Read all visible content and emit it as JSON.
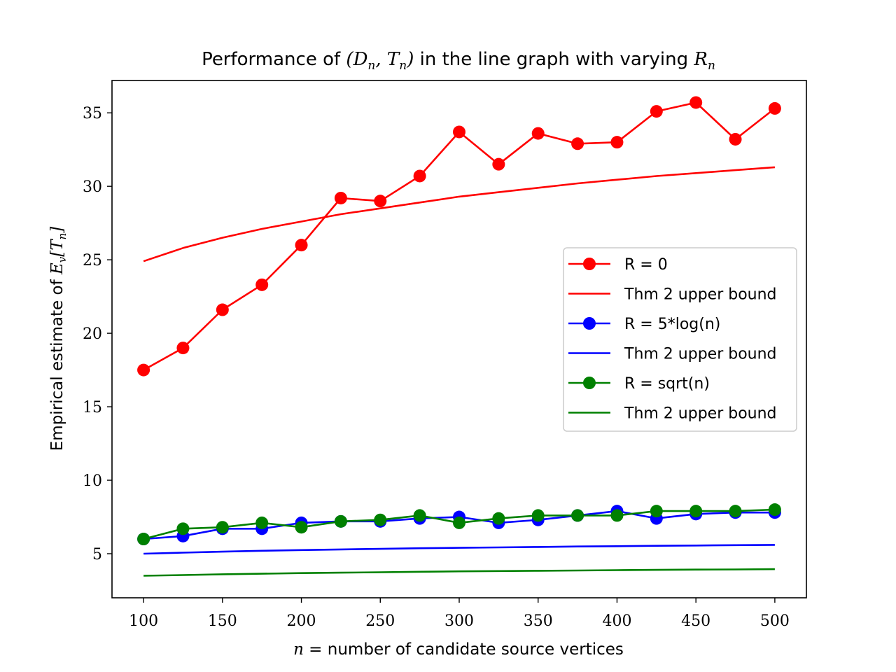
{
  "chart_data": {
    "type": "line",
    "title_prefix": "Performance of ",
    "title_math1": "(D",
    "title_math1_sub": "n",
    "title_math1_mid": ", T",
    "title_math1_sub2": "n",
    "title_math1_end": ")",
    "title_mid": " in the line graph with varying ",
    "title_math2": "R",
    "title_math2_sub": "n",
    "xlabel_math": "n =",
    "xlabel_text": " number of candidate source vertices",
    "ylabel_text": "Empirical estimate of ",
    "ylabel_math": "E",
    "ylabel_math_sub": "v",
    "ylabel_math_bracket": "[T",
    "ylabel_math_sub2": "n",
    "ylabel_math_end": "]",
    "x": [
      100,
      125,
      150,
      175,
      200,
      225,
      250,
      275,
      300,
      325,
      350,
      375,
      400,
      425,
      450,
      475,
      500
    ],
    "xlim": [
      80,
      520
    ],
    "ylim": [
      2,
      37.2
    ],
    "xticks": [
      100,
      150,
      200,
      250,
      300,
      350,
      400,
      450,
      500
    ],
    "yticks": [
      5,
      10,
      15,
      20,
      25,
      30,
      35
    ],
    "legend_position": "center-right",
    "series": [
      {
        "name": "R = 0",
        "color": "#ff0000",
        "marker": true,
        "values": [
          17.5,
          19.0,
          21.6,
          23.3,
          26.0,
          29.2,
          29.0,
          30.7,
          33.7,
          31.5,
          33.6,
          32.9,
          33.0,
          35.1,
          35.7,
          33.2,
          35.3
        ]
      },
      {
        "name": "Thm 2 upper bound",
        "color": "#ff0000",
        "marker": false,
        "values": [
          24.9,
          25.8,
          26.5,
          27.1,
          27.6,
          28.1,
          28.5,
          28.9,
          29.3,
          29.6,
          29.9,
          30.2,
          30.45,
          30.7,
          30.9,
          31.1,
          31.3
        ]
      },
      {
        "name": "R = 5*log(n)",
        "color": "#0000ff",
        "marker": true,
        "values": [
          6.0,
          6.2,
          6.7,
          6.7,
          7.1,
          7.2,
          7.2,
          7.4,
          7.5,
          7.1,
          7.3,
          7.6,
          7.9,
          7.4,
          7.7,
          7.8,
          7.8
        ]
      },
      {
        "name": "Thm 2 upper bound",
        "color": "#0000ff",
        "marker": false,
        "values": [
          5.0,
          5.07,
          5.14,
          5.2,
          5.25,
          5.29,
          5.33,
          5.37,
          5.4,
          5.43,
          5.46,
          5.49,
          5.51,
          5.54,
          5.56,
          5.58,
          5.6
        ]
      },
      {
        "name": "R = sqrt(n)",
        "color": "#008000",
        "marker": true,
        "values": [
          6.0,
          6.7,
          6.8,
          7.1,
          6.8,
          7.2,
          7.3,
          7.6,
          7.1,
          7.4,
          7.6,
          7.6,
          7.6,
          7.9,
          7.9,
          7.9,
          8.0
        ]
      },
      {
        "name": "Thm 2 upper bound",
        "color": "#008000",
        "marker": false,
        "values": [
          3.5,
          3.55,
          3.6,
          3.64,
          3.68,
          3.71,
          3.74,
          3.77,
          3.8,
          3.82,
          3.84,
          3.86,
          3.88,
          3.9,
          3.92,
          3.93,
          3.95
        ]
      }
    ]
  }
}
